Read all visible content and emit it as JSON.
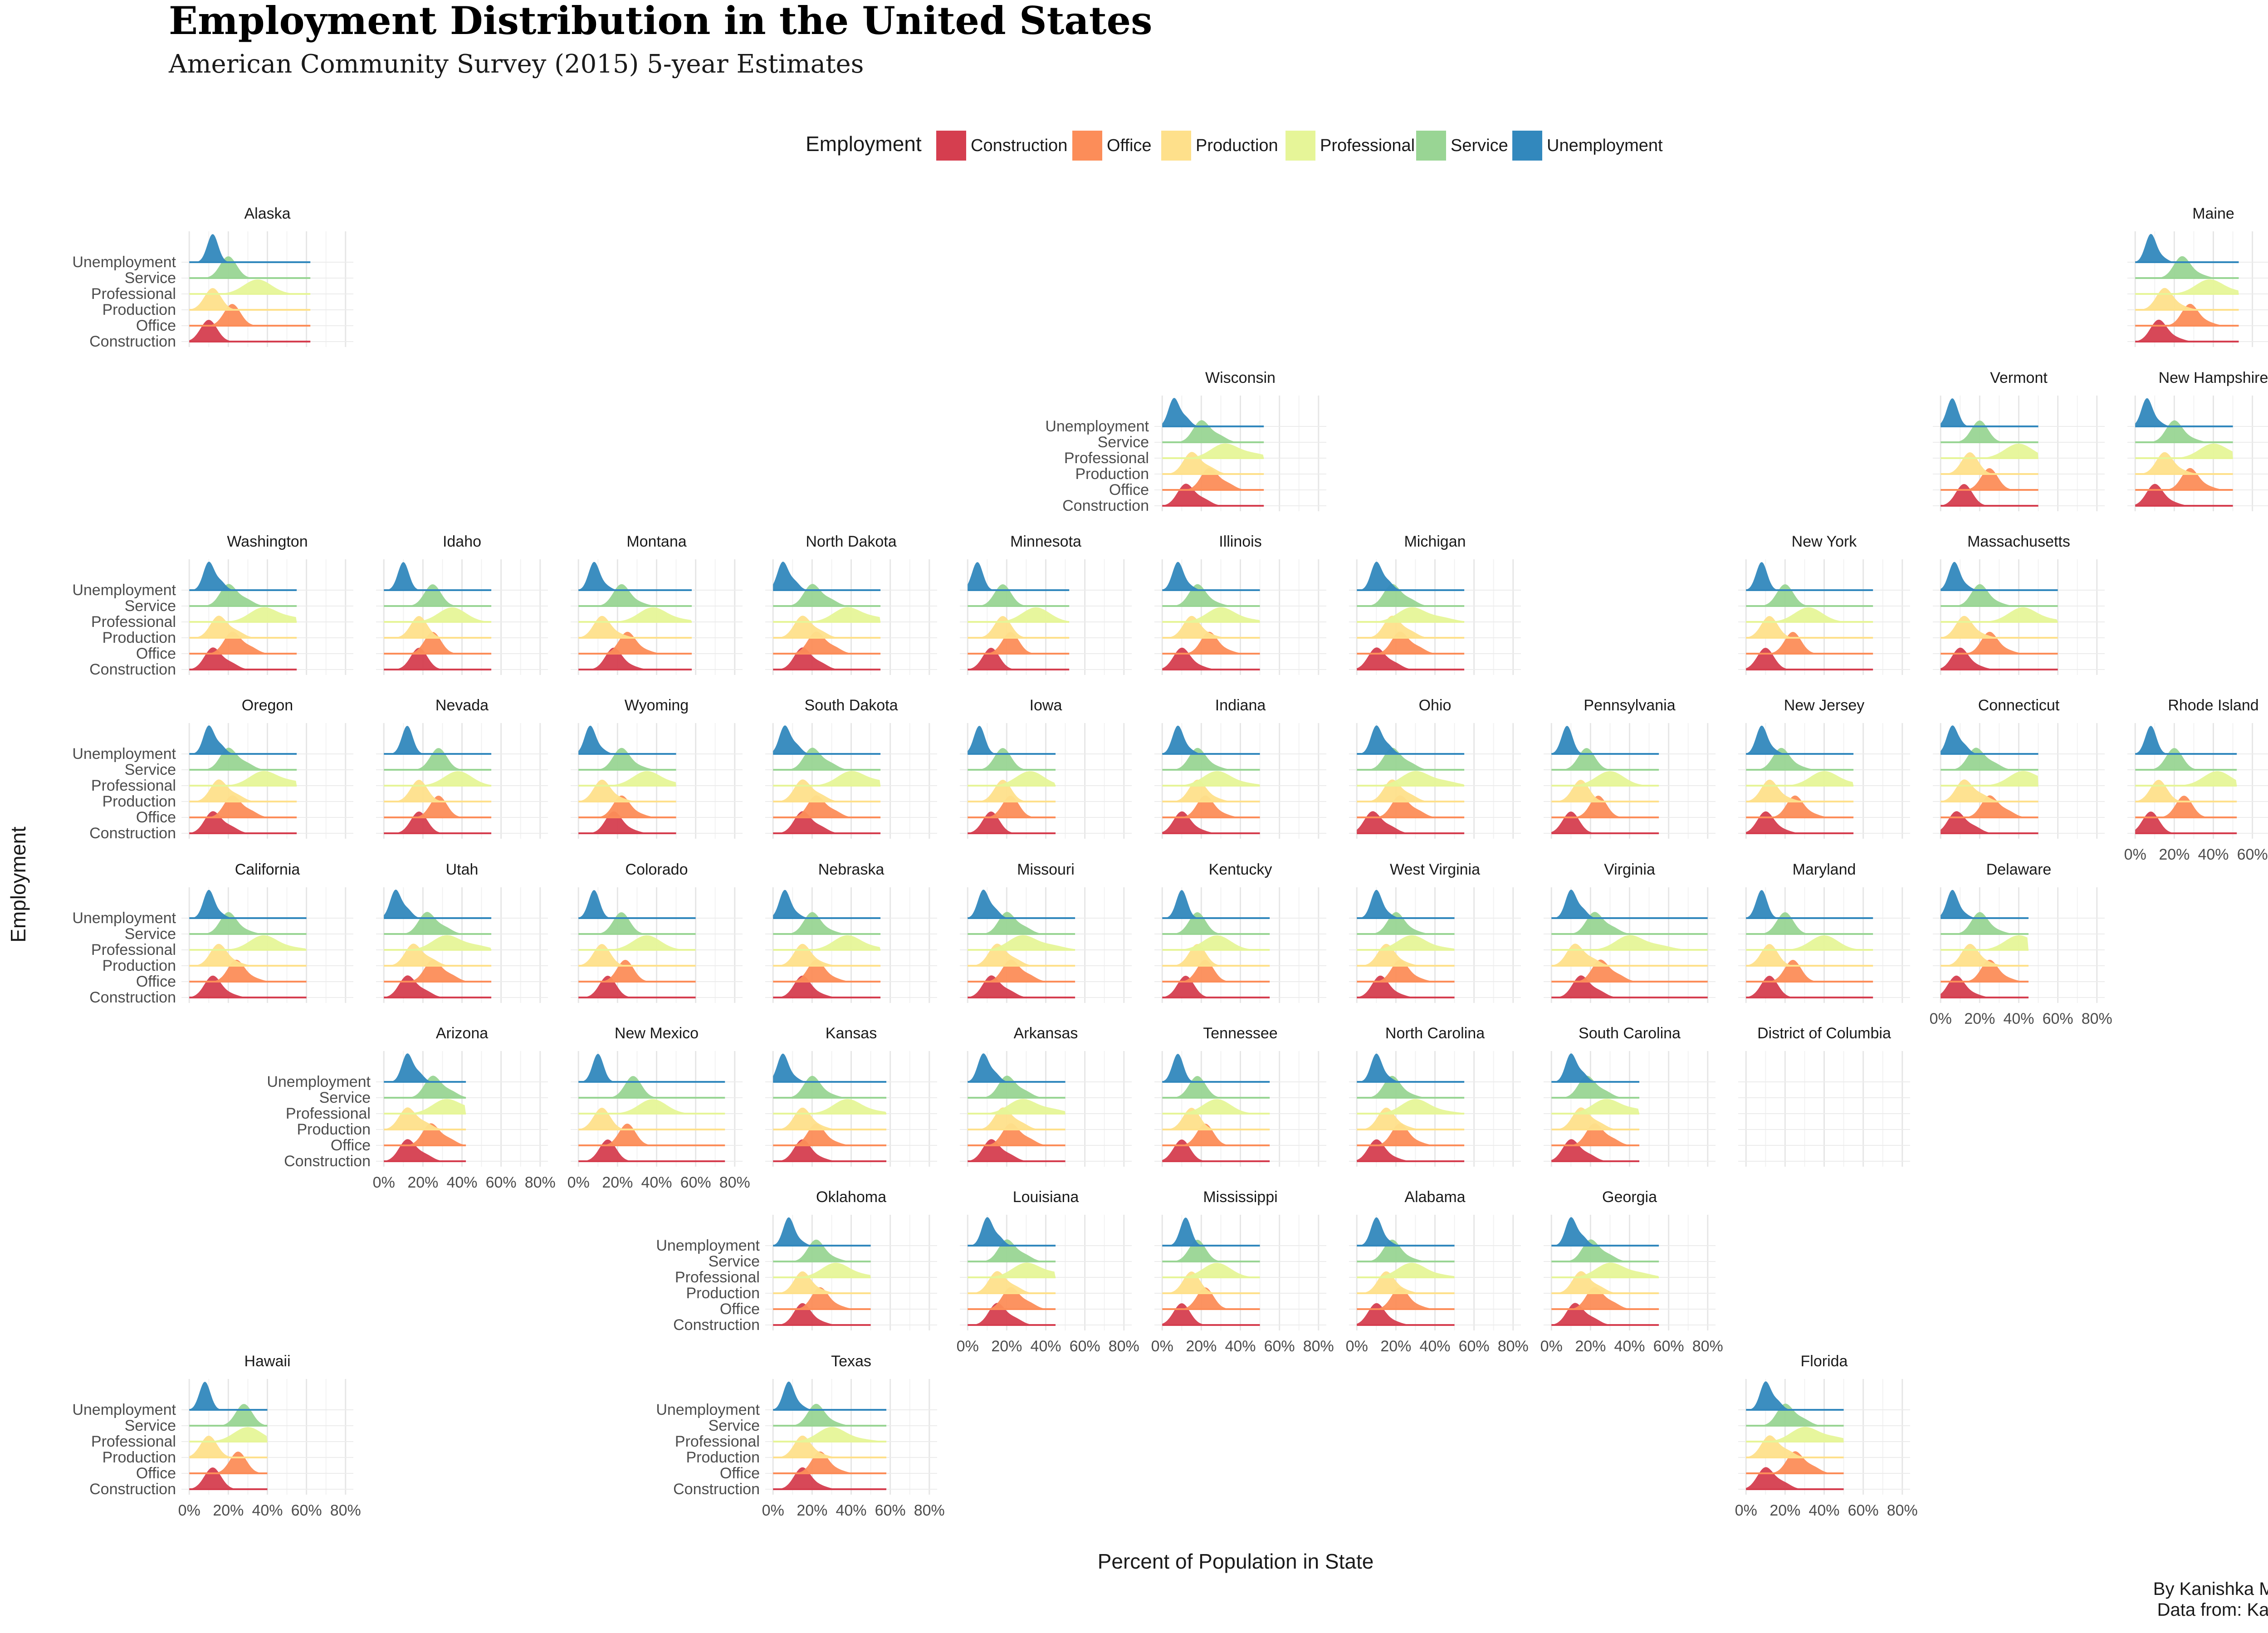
{
  "title": "Employment Distribution in the United States",
  "subtitle": "American Community Survey (2015) 5-year Estimates",
  "caption": {
    "line1": "By Kanishka Misra",
    "line2": "Data from: Kaggle"
  },
  "chart_data": {
    "type": "ridgeline-small-multiples",
    "xlabel": "Percent of Population in State",
    "ylabel": "Employment",
    "x_ticks": [
      "0%",
      "20%",
      "40%",
      "60%",
      "80%"
    ],
    "xlim": [
      -4,
      84
    ],
    "legend": {
      "title": "Employment",
      "position": "top",
      "items": [
        {
          "label": "Construction",
          "color": "#D53E4F"
        },
        {
          "label": "Office",
          "color": "#FC8D59"
        },
        {
          "label": "Production",
          "color": "#FEE08B"
        },
        {
          "label": "Professional",
          "color": "#E6F598"
        },
        {
          "label": "Service",
          "color": "#99D594"
        },
        {
          "label": "Unemployment",
          "color": "#3288BD"
        }
      ]
    },
    "categories_bottom_to_top": [
      "Construction",
      "Office",
      "Production",
      "Professional",
      "Service",
      "Unemployment"
    ],
    "states": [
      {
        "name": "Alaska",
        "row": 0,
        "col": 0,
        "yaxis": true,
        "xaxis": false,
        "peaks": [
          10,
          22,
          12,
          35,
          20,
          12
        ],
        "max": 62
      },
      {
        "name": "Maine",
        "row": 0,
        "col": 10,
        "yaxis": false,
        "xaxis": false,
        "peaks": [
          12,
          28,
          15,
          38,
          24,
          8
        ],
        "max": 53
      },
      {
        "name": "Wisconsin",
        "row": 1,
        "col": 5,
        "yaxis": true,
        "xaxis": false,
        "peaks": [
          12,
          24,
          15,
          32,
          20,
          6
        ],
        "max": 52
      },
      {
        "name": "Vermont",
        "row": 1,
        "col": 9,
        "yaxis": false,
        "xaxis": false,
        "peaks": [
          12,
          25,
          15,
          40,
          20,
          6
        ],
        "max": 50
      },
      {
        "name": "New Hampshire",
        "row": 1,
        "col": 10,
        "yaxis": false,
        "xaxis": false,
        "peaks": [
          10,
          28,
          15,
          40,
          20,
          6
        ],
        "max": 50
      },
      {
        "name": "Washington",
        "row": 2,
        "col": 0,
        "yaxis": true,
        "xaxis": false,
        "peaks": [
          12,
          22,
          15,
          38,
          20,
          10
        ],
        "max": 55
      },
      {
        "name": "Idaho",
        "row": 2,
        "col": 1,
        "yaxis": false,
        "xaxis": false,
        "peaks": [
          18,
          25,
          18,
          35,
          25,
          10
        ],
        "max": 55
      },
      {
        "name": "Montana",
        "row": 2,
        "col": 2,
        "yaxis": false,
        "xaxis": false,
        "peaks": [
          18,
          25,
          12,
          38,
          22,
          8
        ],
        "max": 58
      },
      {
        "name": "North Dakota",
        "row": 2,
        "col": 3,
        "yaxis": false,
        "xaxis": false,
        "peaks": [
          15,
          22,
          15,
          38,
          20,
          5
        ],
        "max": 55
      },
      {
        "name": "Minnesota",
        "row": 2,
        "col": 4,
        "yaxis": false,
        "xaxis": false,
        "peaks": [
          12,
          22,
          18,
          35,
          18,
          5
        ],
        "max": 52
      },
      {
        "name": "Illinois",
        "row": 2,
        "col": 5,
        "yaxis": false,
        "xaxis": false,
        "peaks": [
          10,
          24,
          15,
          30,
          18,
          8
        ],
        "max": 50
      },
      {
        "name": "Michigan",
        "row": 2,
        "col": 6,
        "yaxis": false,
        "xaxis": false,
        "peaks": [
          10,
          22,
          18,
          28,
          18,
          10
        ],
        "max": 55
      },
      {
        "name": "New York",
        "row": 2,
        "col": 8,
        "yaxis": false,
        "xaxis": false,
        "peaks": [
          10,
          24,
          12,
          32,
          20,
          8
        ],
        "max": 65
      },
      {
        "name": "Massachusetts",
        "row": 2,
        "col": 9,
        "yaxis": false,
        "xaxis": false,
        "peaks": [
          10,
          25,
          12,
          42,
          20,
          7
        ],
        "max": 60
      },
      {
        "name": "Oregon",
        "row": 3,
        "col": 0,
        "yaxis": true,
        "xaxis": false,
        "peaks": [
          12,
          22,
          15,
          38,
          20,
          10
        ],
        "max": 55
      },
      {
        "name": "Nevada",
        "row": 3,
        "col": 1,
        "yaxis": false,
        "xaxis": false,
        "peaks": [
          18,
          28,
          18,
          38,
          28,
          12
        ],
        "max": 55
      },
      {
        "name": "Wyoming",
        "row": 3,
        "col": 2,
        "yaxis": false,
        "xaxis": false,
        "peaks": [
          18,
          22,
          12,
          35,
          22,
          6
        ],
        "max": 50
      },
      {
        "name": "South Dakota",
        "row": 3,
        "col": 3,
        "yaxis": false,
        "xaxis": false,
        "peaks": [
          15,
          22,
          15,
          40,
          20,
          6
        ],
        "max": 55
      },
      {
        "name": "Iowa",
        "row": 3,
        "col": 4,
        "yaxis": false,
        "xaxis": false,
        "peaks": [
          12,
          22,
          18,
          32,
          18,
          6
        ],
        "max": 45
      },
      {
        "name": "Indiana",
        "row": 3,
        "col": 5,
        "yaxis": false,
        "xaxis": false,
        "peaks": [
          10,
          22,
          18,
          28,
          18,
          8
        ],
        "max": 50
      },
      {
        "name": "Ohio",
        "row": 3,
        "col": 6,
        "yaxis": false,
        "xaxis": false,
        "peaks": [
          8,
          22,
          18,
          30,
          18,
          10
        ],
        "max": 55
      },
      {
        "name": "Pennsylvania",
        "row": 3,
        "col": 7,
        "yaxis": false,
        "xaxis": false,
        "peaks": [
          10,
          24,
          15,
          30,
          18,
          8
        ],
        "max": 55
      },
      {
        "name": "New Jersey",
        "row": 3,
        "col": 8,
        "yaxis": false,
        "xaxis": false,
        "peaks": [
          10,
          25,
          12,
          40,
          18,
          8
        ],
        "max": 55
      },
      {
        "name": "Connecticut",
        "row": 3,
        "col": 9,
        "yaxis": false,
        "xaxis": false,
        "peaks": [
          8,
          25,
          12,
          42,
          18,
          6
        ],
        "max": 50
      },
      {
        "name": "Rhode Island",
        "row": 3,
        "col": 10,
        "yaxis": false,
        "xaxis": true,
        "peaks": [
          8,
          25,
          12,
          42,
          20,
          8
        ],
        "max": 52
      },
      {
        "name": "California",
        "row": 4,
        "col": 0,
        "yaxis": true,
        "xaxis": false,
        "peaks": [
          12,
          24,
          15,
          38,
          20,
          10
        ],
        "max": 60
      },
      {
        "name": "Utah",
        "row": 4,
        "col": 1,
        "yaxis": false,
        "xaxis": false,
        "peaks": [
          12,
          25,
          15,
          32,
          22,
          6
        ],
        "max": 55
      },
      {
        "name": "Colorado",
        "row": 4,
        "col": 2,
        "yaxis": false,
        "xaxis": false,
        "peaks": [
          15,
          24,
          12,
          35,
          22,
          8
        ],
        "max": 60
      },
      {
        "name": "Nebraska",
        "row": 4,
        "col": 3,
        "yaxis": false,
        "xaxis": false,
        "peaks": [
          15,
          22,
          15,
          38,
          20,
          6
        ],
        "max": 55
      },
      {
        "name": "Missouri",
        "row": 4,
        "col": 4,
        "yaxis": false,
        "xaxis": false,
        "peaks": [
          12,
          22,
          15,
          28,
          20,
          8
        ],
        "max": 55
      },
      {
        "name": "Kentucky",
        "row": 4,
        "col": 5,
        "yaxis": false,
        "xaxis": false,
        "peaks": [
          12,
          22,
          18,
          28,
          18,
          10
        ],
        "max": 55
      },
      {
        "name": "West Virginia",
        "row": 4,
        "col": 6,
        "yaxis": false,
        "xaxis": false,
        "peaks": [
          12,
          22,
          15,
          28,
          20,
          10
        ],
        "max": 50
      },
      {
        "name": "Virginia",
        "row": 4,
        "col": 7,
        "yaxis": false,
        "xaxis": false,
        "peaks": [
          15,
          25,
          12,
          40,
          22,
          10
        ],
        "max": 80
      },
      {
        "name": "Maryland",
        "row": 4,
        "col": 8,
        "yaxis": false,
        "xaxis": false,
        "peaks": [
          12,
          24,
          12,
          40,
          20,
          8
        ],
        "max": 65
      },
      {
        "name": "Delaware",
        "row": 4,
        "col": 9,
        "yaxis": false,
        "xaxis": true,
        "peaks": [
          8,
          25,
          15,
          40,
          20,
          6
        ],
        "max": 45
      },
      {
        "name": "Arizona",
        "row": 5,
        "col": 1,
        "yaxis": true,
        "xaxis": true,
        "peaks": [
          12,
          24,
          12,
          32,
          25,
          12
        ],
        "max": 42
      },
      {
        "name": "New Mexico",
        "row": 5,
        "col": 2,
        "yaxis": false,
        "xaxis": true,
        "peaks": [
          15,
          25,
          12,
          38,
          28,
          10
        ],
        "max": 75
      },
      {
        "name": "Kansas",
        "row": 5,
        "col": 3,
        "yaxis": false,
        "xaxis": false,
        "peaks": [
          15,
          22,
          15,
          38,
          20,
          5
        ],
        "max": 58
      },
      {
        "name": "Arkansas",
        "row": 5,
        "col": 4,
        "yaxis": false,
        "xaxis": false,
        "peaks": [
          12,
          22,
          18,
          28,
          20,
          8
        ],
        "max": 50
      },
      {
        "name": "Tennessee",
        "row": 5,
        "col": 5,
        "yaxis": false,
        "xaxis": false,
        "peaks": [
          10,
          22,
          15,
          28,
          18,
          8
        ],
        "max": 55
      },
      {
        "name": "North Carolina",
        "row": 5,
        "col": 6,
        "yaxis": false,
        "xaxis": false,
        "peaks": [
          10,
          22,
          15,
          30,
          18,
          10
        ],
        "max": 55
      },
      {
        "name": "South Carolina",
        "row": 5,
        "col": 7,
        "yaxis": false,
        "xaxis": false,
        "peaks": [
          10,
          22,
          15,
          28,
          18,
          10
        ],
        "max": 45
      },
      {
        "name": "District of Columbia",
        "row": 5,
        "col": 8,
        "yaxis": false,
        "xaxis": false,
        "peaks": [],
        "max": 0
      },
      {
        "name": "Oklahoma",
        "row": 6,
        "col": 3,
        "yaxis": true,
        "xaxis": false,
        "peaks": [
          15,
          24,
          15,
          32,
          22,
          8
        ],
        "max": 50
      },
      {
        "name": "Louisiana",
        "row": 6,
        "col": 4,
        "yaxis": false,
        "xaxis": true,
        "peaks": [
          15,
          22,
          15,
          30,
          20,
          10
        ],
        "max": 45
      },
      {
        "name": "Mississippi",
        "row": 6,
        "col": 5,
        "yaxis": false,
        "xaxis": true,
        "peaks": [
          10,
          22,
          15,
          28,
          18,
          12
        ],
        "max": 50
      },
      {
        "name": "Alabama",
        "row": 6,
        "col": 6,
        "yaxis": false,
        "xaxis": true,
        "peaks": [
          10,
          22,
          15,
          28,
          18,
          10
        ],
        "max": 50
      },
      {
        "name": "Georgia",
        "row": 6,
        "col": 7,
        "yaxis": false,
        "xaxis": true,
        "peaks": [
          12,
          22,
          15,
          30,
          20,
          10
        ],
        "max": 55
      },
      {
        "name": "Hawaii",
        "row": 7,
        "col": 0,
        "yaxis": true,
        "xaxis": true,
        "peaks": [
          12,
          25,
          10,
          30,
          28,
          8
        ],
        "max": 40
      },
      {
        "name": "Texas",
        "row": 7,
        "col": 3,
        "yaxis": true,
        "xaxis": true,
        "peaks": [
          15,
          24,
          15,
          30,
          22,
          8
        ],
        "max": 58
      },
      {
        "name": "Florida",
        "row": 7,
        "col": 8,
        "yaxis": false,
        "xaxis": true,
        "peaks": [
          10,
          25,
          12,
          30,
          20,
          10
        ],
        "max": 50
      }
    ]
  }
}
